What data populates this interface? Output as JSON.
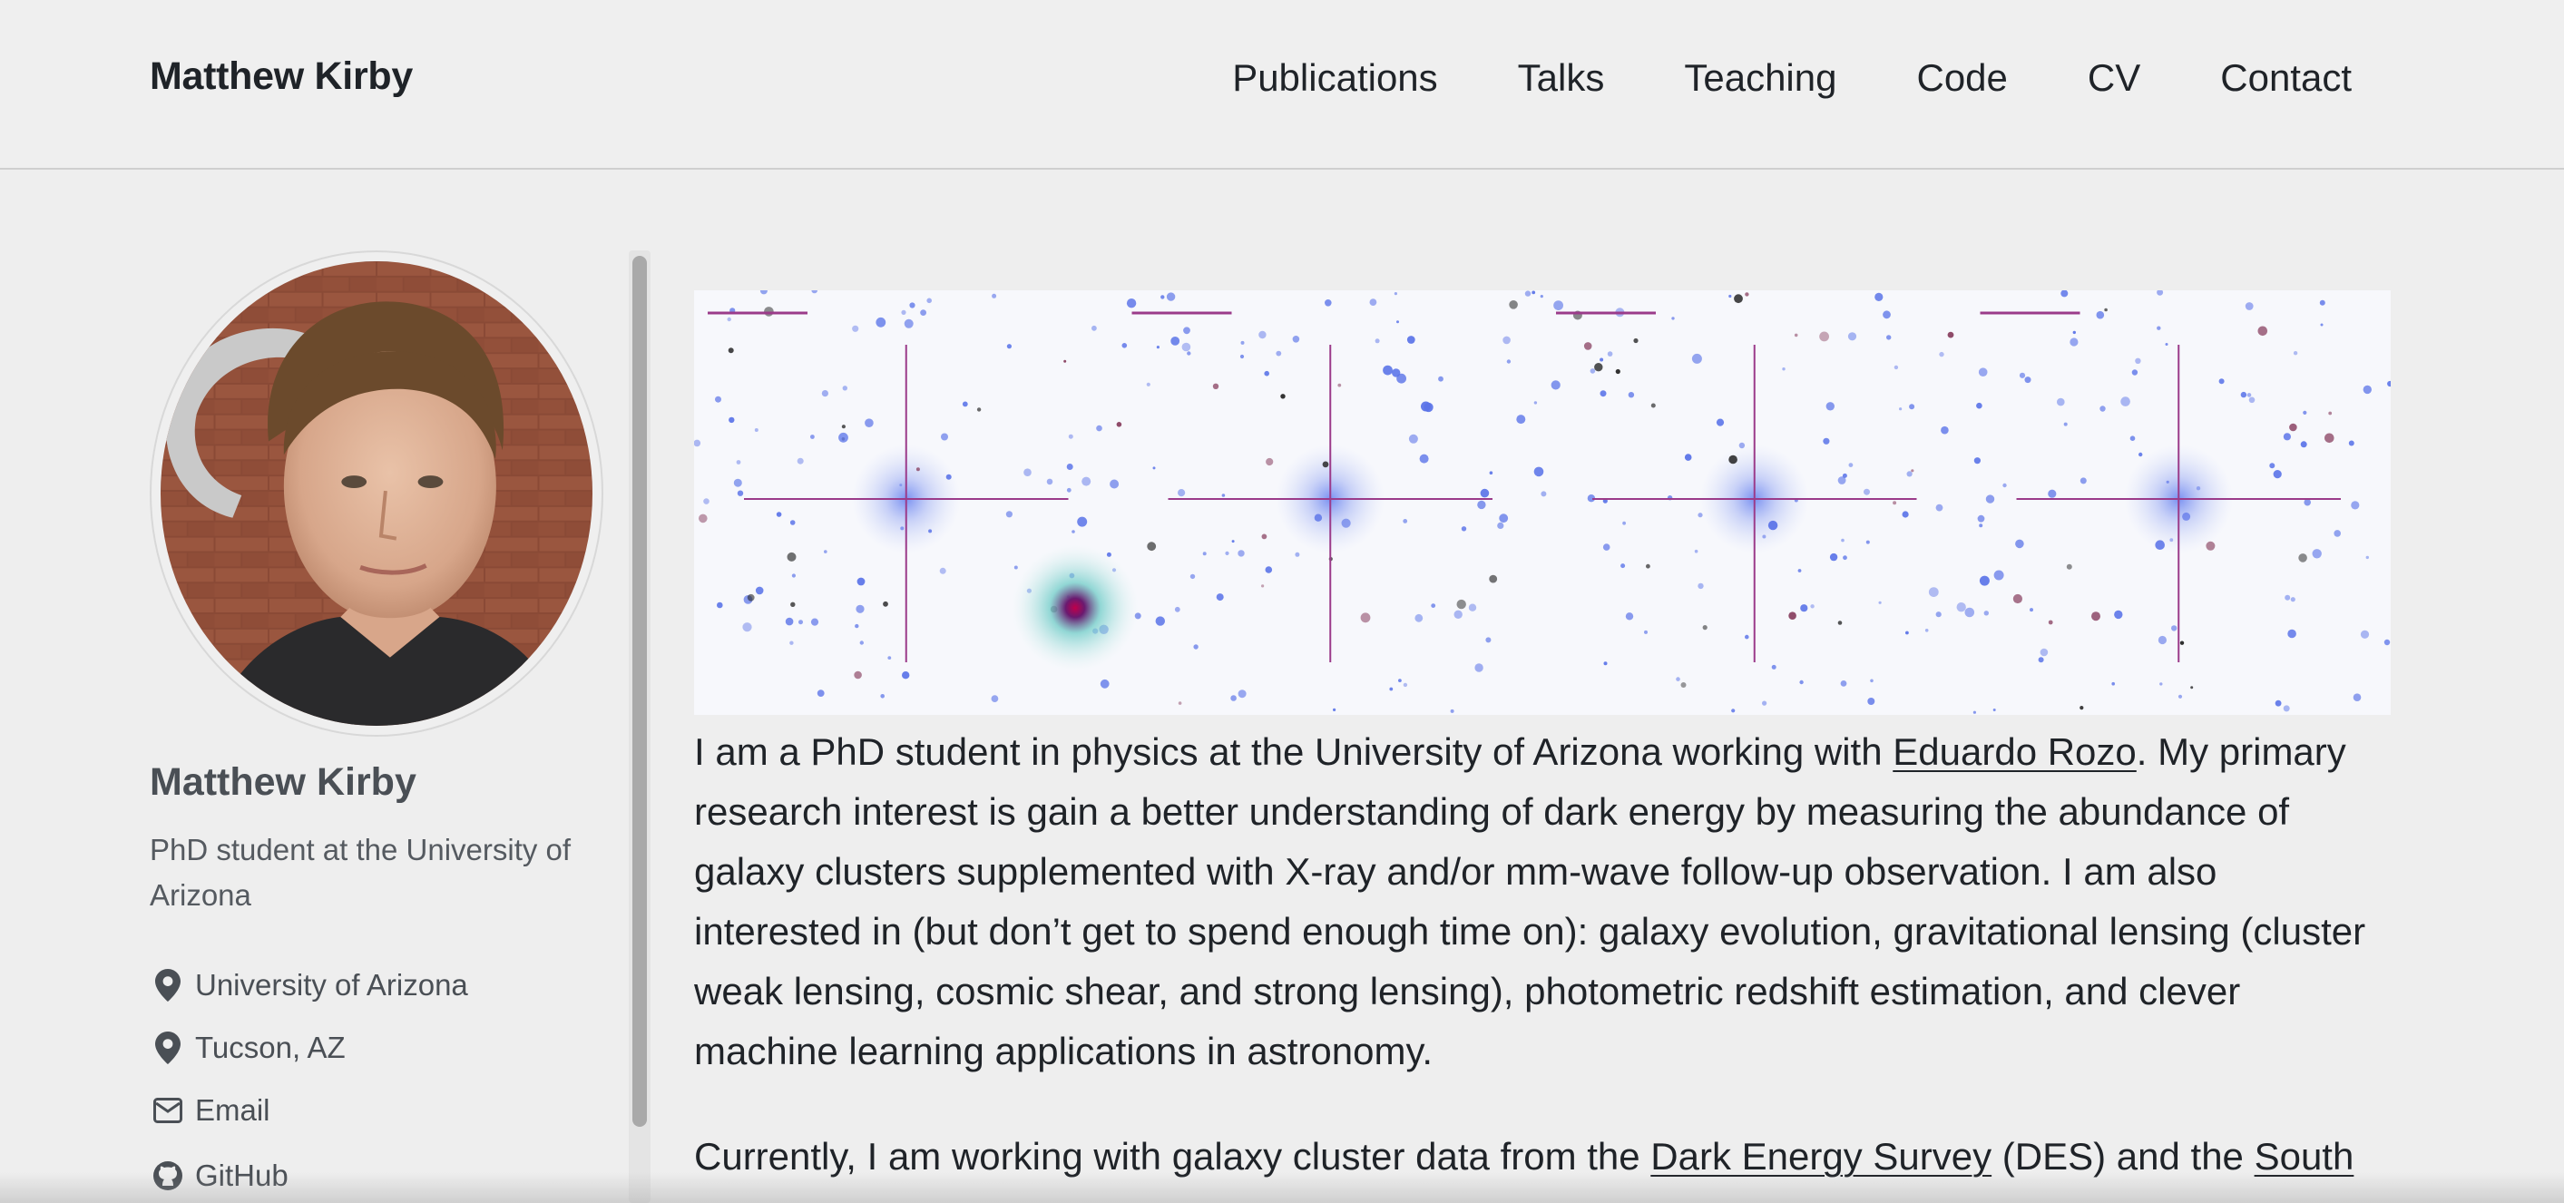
{
  "site": {
    "title": "Matthew Kirby"
  },
  "nav": [
    {
      "label": "Publications"
    },
    {
      "label": "Talks"
    },
    {
      "label": "Teaching"
    },
    {
      "label": "Code"
    },
    {
      "label": "CV"
    },
    {
      "label": "Contact"
    }
  ],
  "sidebar": {
    "name": "Matthew Kirby",
    "bio": "PhD student at the University of Arizona",
    "links": [
      {
        "icon": "map-marker-icon",
        "label": "University of Arizona"
      },
      {
        "icon": "map-marker-icon",
        "label": "Tucson, AZ"
      },
      {
        "icon": "envelope-icon",
        "label": "Email"
      },
      {
        "icon": "github-icon",
        "label": "GitHub"
      }
    ]
  },
  "main": {
    "p1": {
      "before": "I am a PhD student in physics at the University of Arizona working with ",
      "link": "Eduardo Rozo",
      "after": ". My primary research interest is gain a better understanding of dark energy by measuring the abundance of galaxy clusters supplemented with X-ray and/or mm-wave follow-up observation. I am also interested in (but don’t get to spend enough time on): galaxy evolution, gravitational lensing (cluster weak lensing, cosmic shear, and strong lensing), photometric redshift estimation, and clever machine learning applications in astronomy."
    },
    "p2": {
      "before": "Currently, I am working with galaxy cluster data from the ",
      "link1": "Dark Energy Survey",
      "middle": " (DES) and the ",
      "link2": "South"
    }
  },
  "colors": {
    "text": "#1f2328",
    "muted": "#4a4f55",
    "background": "#eeeeee",
    "crosshair": "#9b3b8a"
  }
}
